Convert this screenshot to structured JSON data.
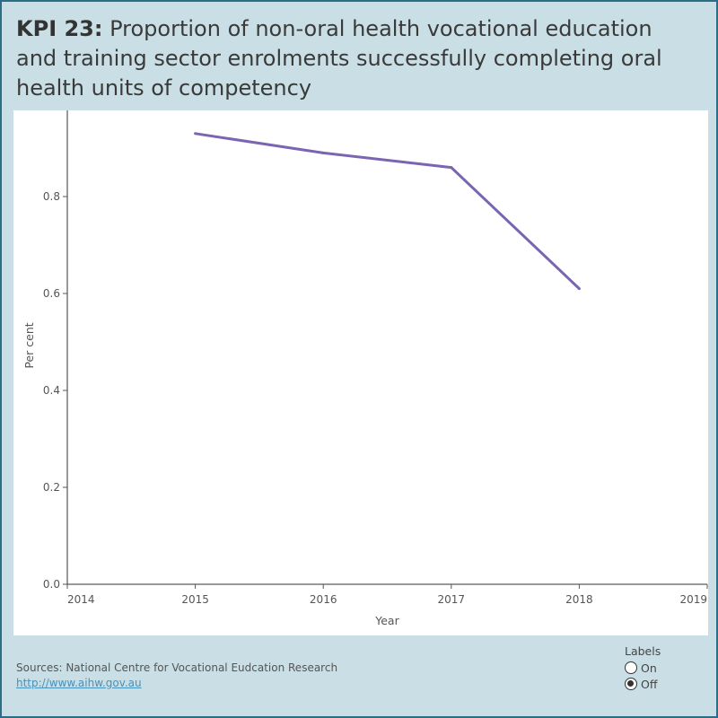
{
  "title": {
    "prefix": "KPI 23:",
    "text": "Proportion of non-oral health vocational education and training sector enrolments successfully completing oral health units of competency"
  },
  "chart_data": {
    "type": "line",
    "x": [
      2015,
      2016,
      2017,
      2018
    ],
    "series": [
      {
        "values": [
          0.93,
          0.89,
          0.86,
          0.61
        ],
        "color": "#7b64b2"
      }
    ],
    "x_ticks": [
      "2014",
      "2015",
      "2016",
      "2017",
      "2018",
      "2019"
    ],
    "y_ticks": [
      "0.0",
      "0.2",
      "0.4",
      "0.6",
      "0.8"
    ],
    "xlabel": "Year",
    "ylabel": "Per cent",
    "xlim": [
      2014,
      2019
    ],
    "ylim": [
      0,
      0.98
    ],
    "grid": false
  },
  "footer": {
    "sources": "Sources: National Centre for Vocational Eudcation Research",
    "link": "http://www.aihw.gov.au"
  },
  "labels_control": {
    "heading": "Labels",
    "options": [
      "On",
      "Off"
    ],
    "selected": "Off"
  }
}
